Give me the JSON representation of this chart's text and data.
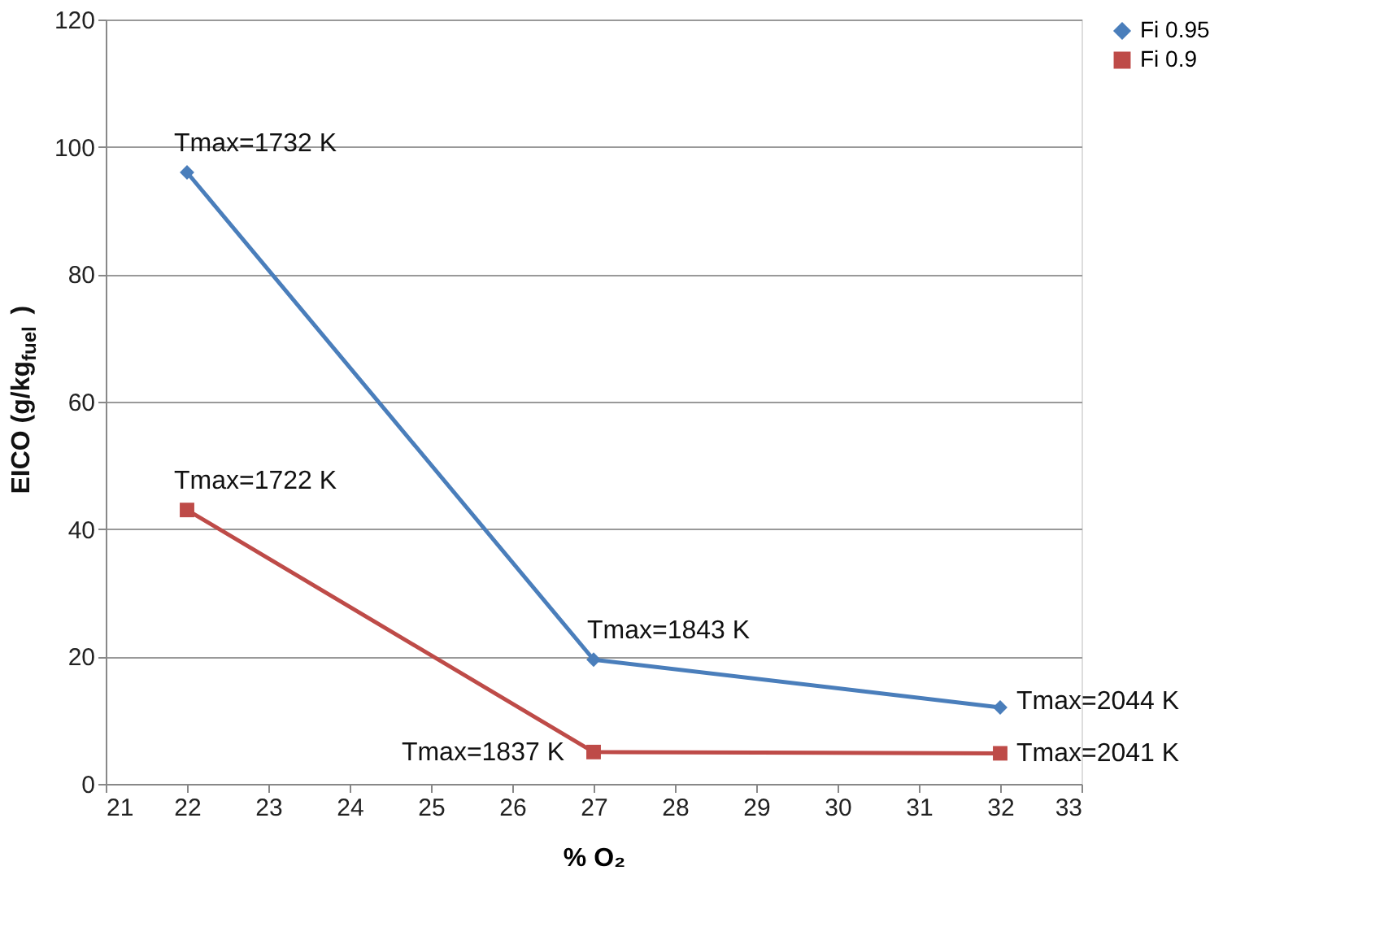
{
  "chart_data": {
    "type": "line",
    "xlabel": "% O₂",
    "ylabel": "EICO (g/kg$_{fuel}$)",
    "x": [
      22,
      27,
      32
    ],
    "series": [
      {
        "name": "Fi 0.95",
        "color": "#4a7ebb",
        "values": [
          96,
          19.5,
          12
        ],
        "marker": "diamond"
      },
      {
        "name": "Fi 0.9",
        "color": "#be4b48",
        "values": [
          43,
          5,
          4.8
        ],
        "marker": "square"
      }
    ],
    "xlim": [
      21,
      33
    ],
    "xticks": [
      21,
      22,
      23,
      24,
      25,
      26,
      27,
      28,
      29,
      30,
      31,
      32,
      33
    ],
    "ylim": [
      0,
      120
    ],
    "yticks": [
      0,
      20,
      40,
      60,
      80,
      100,
      120
    ],
    "grid": "y",
    "legend": "right",
    "annotations": [
      {
        "text": "Tmax=1732 K",
        "x": 22,
        "y": 96
      },
      {
        "text": "Tmax=1722 K",
        "x": 22,
        "y": 43
      },
      {
        "text": "Tmax=1843 K",
        "x": 27,
        "y": 19.5
      },
      {
        "text": "Tmax=1837 K",
        "x": 27,
        "y": 5
      },
      {
        "text": "Tmax=2044 K",
        "x": 32,
        "y": 12
      },
      {
        "text": "Tmax=2041 K",
        "x": 32,
        "y": 4.8
      }
    ],
    "line_style": "solid"
  }
}
